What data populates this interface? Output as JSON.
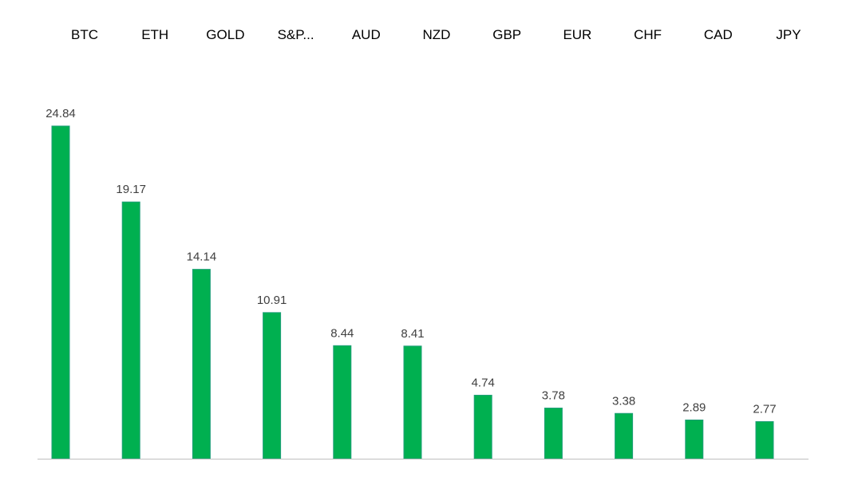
{
  "chart_data": {
    "type": "bar",
    "categories": [
      "BTC",
      "ETH",
      "GOLD",
      "S&P...",
      "AUD",
      "NZD",
      "GBP",
      "EUR",
      "CHF",
      "CAD",
      "JPY"
    ],
    "values": [
      24.84,
      19.17,
      14.14,
      10.91,
      8.44,
      8.41,
      4.74,
      3.78,
      3.38,
      2.89,
      2.77
    ],
    "value_labels": [
      "24.84",
      "19.17",
      "14.14",
      "10.91",
      "8.44",
      "8.41",
      "4.74",
      "3.78",
      "3.38",
      "2.89",
      "2.77"
    ],
    "title": "",
    "xlabel": "",
    "ylabel": "",
    "ylim": [
      0,
      24.84
    ],
    "category_axis_position": "top",
    "data_labels": true,
    "grid": false,
    "legend": "none"
  },
  "colors": {
    "bar_fill": "#00b050",
    "bar_stroke": "#1f9e78",
    "axis_line": "#bfbfbf",
    "category_text": "#000000",
    "value_text": "#404040",
    "background": "#ffffff"
  }
}
